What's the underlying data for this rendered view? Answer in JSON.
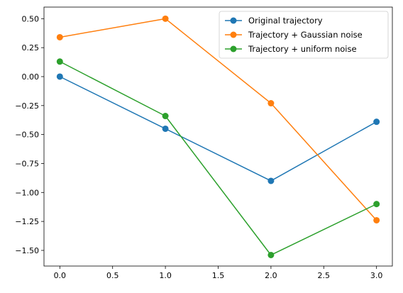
{
  "chart_data": {
    "type": "line",
    "title": "",
    "xlabel": "",
    "ylabel": "",
    "x": [
      0,
      1,
      2,
      3
    ],
    "xlim": [
      -0.15,
      3.15
    ],
    "ylim": [
      -1.635,
      0.6
    ],
    "xticks": [
      0.0,
      0.5,
      1.0,
      1.5,
      2.0,
      2.5,
      3.0
    ],
    "xtick_labels": [
      "0.0",
      "0.5",
      "1.0",
      "1.5",
      "2.0",
      "2.5",
      "3.0"
    ],
    "yticks": [
      0.5,
      0.25,
      0.0,
      -0.25,
      -0.5,
      -0.75,
      -1.0,
      -1.25,
      -1.5
    ],
    "ytick_labels": [
      "0.50",
      "0.25",
      "0.00",
      "−0.25",
      "−0.50",
      "−0.75",
      "−1.00",
      "−1.25",
      "−1.50"
    ],
    "grid": false,
    "legend_position": "top-right",
    "series": [
      {
        "name": "Original trajectory",
        "color": "#1f77b4",
        "marker": "circle",
        "values": [
          0.0,
          -0.45,
          -0.9,
          -0.39
        ]
      },
      {
        "name": "Trajectory + Gaussian noise",
        "color": "#ff7f0e",
        "marker": "circle",
        "values": [
          0.34,
          0.5,
          -0.23,
          -1.24
        ]
      },
      {
        "name": "Trajectory + uniform noise",
        "color": "#2ca02c",
        "marker": "circle",
        "values": [
          0.13,
          -0.34,
          -1.54,
          -1.1
        ]
      }
    ]
  }
}
